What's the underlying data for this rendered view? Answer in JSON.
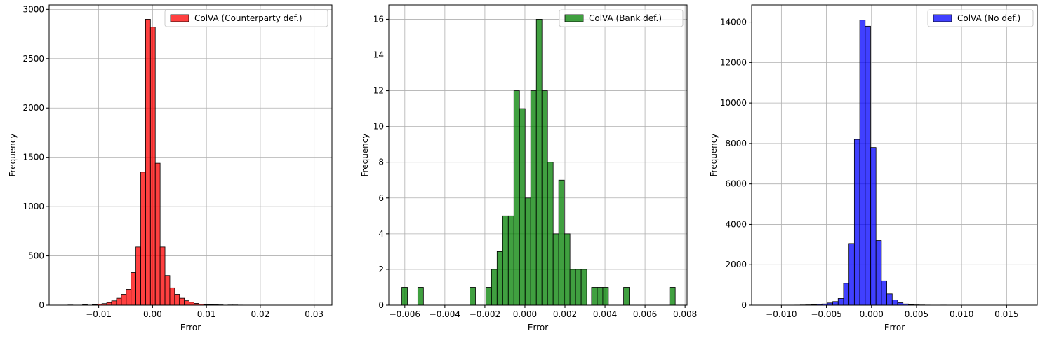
{
  "chart_data": [
    {
      "type": "bar",
      "xlabel": "Error",
      "ylabel": "Frequency",
      "xlim": [
        -0.0192,
        0.0333
      ],
      "ylim": [
        0,
        3045
      ],
      "xticks": [
        -0.01,
        0.0,
        0.01,
        0.02,
        0.03
      ],
      "xtick_labels": [
        "−0.01",
        "0.00",
        "0.01",
        "0.02",
        "0.03"
      ],
      "yticks": [
        0,
        500,
        1000,
        1500,
        2000,
        2500,
        3000
      ],
      "ytick_labels": [
        "0",
        "500",
        "1000",
        "1500",
        "2000",
        "2500",
        "3000"
      ],
      "grid": true,
      "legend_position": "top-right",
      "series": [
        {
          "name": "ColVA (Counterparty def.)",
          "color": "#ff0000",
          "bins": [
            [
              -0.0157,
              -0.0148,
              2
            ],
            [
              -0.0148,
              -0.0139,
              0
            ],
            [
              -0.0139,
              -0.013,
              0
            ],
            [
              -0.013,
              -0.0121,
              4
            ],
            [
              -0.0121,
              -0.0112,
              0
            ],
            [
              -0.0112,
              -0.0103,
              6
            ],
            [
              -0.0103,
              -0.0094,
              10
            ],
            [
              -0.0094,
              -0.0085,
              16
            ],
            [
              -0.0085,
              -0.0076,
              27
            ],
            [
              -0.0076,
              -0.0067,
              44
            ],
            [
              -0.0067,
              -0.0058,
              70
            ],
            [
              -0.0058,
              -0.0049,
              110
            ],
            [
              -0.0049,
              -0.004,
              160
            ],
            [
              -0.004,
              -0.0031,
              330
            ],
            [
              -0.0031,
              -0.0022,
              590
            ],
            [
              -0.0022,
              -0.0013,
              1350
            ],
            [
              -0.0013,
              -0.0004,
              2900
            ],
            [
              -0.0004,
              0.0005,
              2820
            ],
            [
              0.0005,
              0.0014,
              1440
            ],
            [
              0.0014,
              0.0023,
              590
            ],
            [
              0.0023,
              0.0032,
              300
            ],
            [
              0.0032,
              0.0041,
              175
            ],
            [
              0.0041,
              0.005,
              110
            ],
            [
              0.005,
              0.0059,
              70
            ],
            [
              0.0059,
              0.0068,
              45
            ],
            [
              0.0068,
              0.0077,
              30
            ],
            [
              0.0077,
              0.0086,
              18
            ],
            [
              0.0086,
              0.0095,
              10
            ],
            [
              0.0095,
              0.0104,
              6
            ],
            [
              0.0104,
              0.0113,
              5
            ],
            [
              0.0113,
              0.0122,
              4
            ],
            [
              0.0122,
              0.0131,
              3
            ],
            [
              0.0131,
              0.014,
              0
            ],
            [
              0.014,
              0.0149,
              2
            ],
            [
              0.0149,
              0.0158,
              2
            ],
            [
              0.0158,
              0.0167,
              1
            ]
          ]
        }
      ]
    },
    {
      "type": "bar",
      "xlabel": "Error",
      "ylabel": "Frequency",
      "xlim": [
        -0.0068,
        0.0081
      ],
      "ylim": [
        0,
        16.8
      ],
      "xticks": [
        -0.006,
        -0.004,
        -0.002,
        0.0,
        0.002,
        0.004,
        0.006,
        0.008
      ],
      "xtick_labels": [
        "−0.006",
        "−0.004",
        "−0.002",
        "0.000",
        "0.002",
        "0.004",
        "0.006",
        "0.008"
      ],
      "yticks": [
        0,
        2,
        4,
        6,
        8,
        10,
        12,
        14,
        16
      ],
      "ytick_labels": [
        "0",
        "2",
        "4",
        "6",
        "8",
        "10",
        "12",
        "14",
        "16"
      ],
      "grid": true,
      "legend_position": "top-right",
      "series": [
        {
          "name": "ColVA (Bank def.)",
          "color": "#008000",
          "bins": [
            [
              -0.00615,
              -0.00587,
              1
            ],
            [
              -0.00535,
              -0.00507,
              1
            ],
            [
              -0.00275,
              -0.00247,
              1
            ],
            [
              -0.00195,
              -0.00167,
              1
            ],
            [
              -0.00167,
              -0.00139,
              2
            ],
            [
              -0.00139,
              -0.00111,
              3
            ],
            [
              -0.00111,
              -0.00083,
              5
            ],
            [
              -0.00083,
              -0.00055,
              5
            ],
            [
              -0.00055,
              -0.00027,
              12
            ],
            [
              -0.00027,
              1e-05,
              11
            ],
            [
              1e-05,
              0.00029,
              6
            ],
            [
              0.00029,
              0.00057,
              12
            ],
            [
              0.00057,
              0.00085,
              16
            ],
            [
              0.00085,
              0.00113,
              12
            ],
            [
              0.00113,
              0.00141,
              8
            ],
            [
              0.00141,
              0.00169,
              4
            ],
            [
              0.00169,
              0.00197,
              7
            ],
            [
              0.00197,
              0.00225,
              4
            ],
            [
              0.00225,
              0.00253,
              2
            ],
            [
              0.00253,
              0.00281,
              2
            ],
            [
              0.00281,
              0.00309,
              2
            ],
            [
              0.00333,
              0.00361,
              1
            ],
            [
              0.00361,
              0.00389,
              1
            ],
            [
              0.00389,
              0.00417,
              1
            ],
            [
              0.00493,
              0.00521,
              1
            ],
            [
              0.00723,
              0.00751,
              1
            ]
          ]
        }
      ]
    },
    {
      "type": "bar",
      "xlabel": "Error",
      "ylabel": "Frequency",
      "xlim": [
        -0.0133,
        0.0184
      ],
      "ylim": [
        0,
        14850
      ],
      "xticks": [
        -0.01,
        -0.005,
        0.0,
        0.005,
        0.01,
        0.015
      ],
      "xtick_labels": [
        "−0.010",
        "−0.005",
        "0.000",
        "0.005",
        "0.010",
        "0.015"
      ],
      "yticks": [
        0,
        2000,
        4000,
        6000,
        8000,
        10000,
        12000,
        14000
      ],
      "ytick_labels": [
        "0",
        "2000",
        "4000",
        "6000",
        "8000",
        "10000",
        "12000",
        "14000"
      ],
      "grid": true,
      "legend_position": "top-right",
      "series": [
        {
          "name": "ColVA (No def.)",
          "color": "#0000ff",
          "bins": [
            [
              -0.0085,
              -0.0079,
              5
            ],
            [
              -0.0079,
              -0.0073,
              10
            ],
            [
              -0.0073,
              -0.0067,
              15
            ],
            [
              -0.0067,
              -0.0061,
              25
            ],
            [
              -0.0061,
              -0.0055,
              40
            ],
            [
              -0.0055,
              -0.0049,
              60
            ],
            [
              -0.0049,
              -0.0043,
              110
            ],
            [
              -0.0043,
              -0.0037,
              180
            ],
            [
              -0.0037,
              -0.0031,
              330
            ],
            [
              -0.0031,
              -0.0025,
              1080
            ],
            [
              -0.0025,
              -0.0019,
              3050
            ],
            [
              -0.0019,
              -0.0013,
              8200
            ],
            [
              -0.0013,
              -0.0007,
              14100
            ],
            [
              -0.0007,
              -0.0001,
              13800
            ],
            [
              -0.0001,
              0.0005,
              7800
            ],
            [
              0.0005,
              0.0011,
              3200
            ],
            [
              0.0011,
              0.0017,
              1200
            ],
            [
              0.0017,
              0.0023,
              560
            ],
            [
              0.0023,
              0.0029,
              260
            ],
            [
              0.0029,
              0.0035,
              120
            ],
            [
              0.0035,
              0.0041,
              60
            ],
            [
              0.0041,
              0.0047,
              30
            ],
            [
              0.0047,
              0.0053,
              15
            ],
            [
              0.0053,
              0.0059,
              10
            ],
            [
              0.0059,
              0.0065,
              5
            ],
            [
              0.0065,
              0.0071,
              3
            ],
            [
              0.0071,
              0.0077,
              2
            ],
            [
              0.0077,
              0.0083,
              5
            ]
          ]
        }
      ]
    }
  ]
}
